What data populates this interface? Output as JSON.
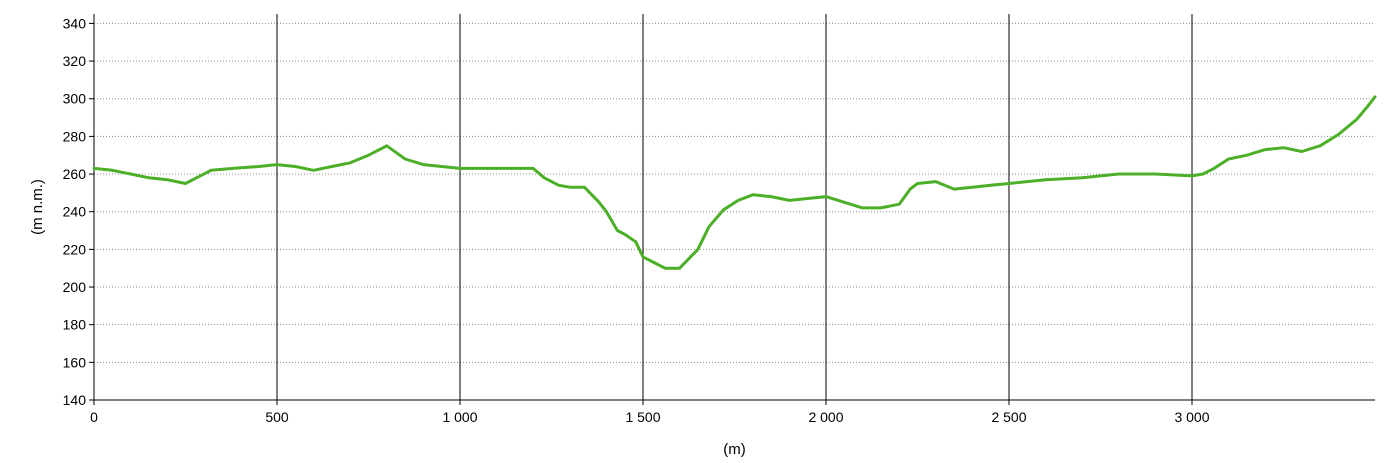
{
  "chart_data": {
    "type": "line",
    "title": "",
    "xlabel": "(m)",
    "ylabel": "(m n.m.)",
    "xlim": [
      0,
      3500
    ],
    "ylim": [
      140,
      345
    ],
    "x_ticks": [
      0,
      500,
      1000,
      1500,
      2000,
      2500,
      3000
    ],
    "x_tick_labels": [
      "0",
      "500",
      "1 000",
      "1 500",
      "2 000",
      "2 500",
      "3 000"
    ],
    "y_ticks": [
      140,
      160,
      180,
      200,
      220,
      240,
      260,
      280,
      300,
      320,
      340
    ],
    "y_tick_labels": [
      "140",
      "160",
      "180",
      "200",
      "220",
      "240",
      "260",
      "280",
      "300",
      "320",
      "340"
    ],
    "grid": {
      "vertical": "solid",
      "horizontal": "dotted"
    },
    "colors": {
      "line": "#4caf28",
      "vertical_grid": "#000000",
      "horizontal_grid": "#8c8c8c",
      "axis": "#000000"
    },
    "series": [
      {
        "x": [
          0,
          50,
          100,
          150,
          200,
          250,
          280,
          320,
          380,
          450,
          500,
          550,
          600,
          650,
          700,
          750,
          800,
          850,
          900,
          950,
          1000,
          1100,
          1200,
          1230,
          1270,
          1300,
          1340,
          1380,
          1400,
          1430,
          1450,
          1480,
          1500,
          1530,
          1560,
          1600,
          1620,
          1650,
          1680,
          1720,
          1760,
          1800,
          1850,
          1900,
          1950,
          2000,
          2050,
          2100,
          2150,
          2200,
          2230,
          2250,
          2300,
          2350,
          2400,
          2450,
          2500,
          2600,
          2700,
          2800,
          2900,
          3000,
          3030,
          3060,
          3100,
          3150,
          3200,
          3250,
          3300,
          3350,
          3400,
          3450,
          3480,
          3500
        ],
        "y": [
          263,
          262,
          260,
          258,
          257,
          255,
          258,
          262,
          263,
          264,
          265,
          264,
          262,
          264,
          266,
          270,
          275,
          268,
          265,
          264,
          263,
          263,
          263,
          258,
          254,
          253,
          253,
          245,
          240,
          230,
          228,
          224,
          216,
          213,
          210,
          210,
          214,
          220,
          232,
          241,
          246,
          249,
          248,
          246,
          247,
          248,
          245,
          242,
          242,
          244,
          252,
          255,
          256,
          252,
          253,
          254,
          255,
          257,
          258,
          260,
          260,
          259,
          260,
          263,
          268,
          270,
          273,
          274,
          272,
          275,
          281,
          289,
          296,
          301
        ]
      }
    ]
  }
}
